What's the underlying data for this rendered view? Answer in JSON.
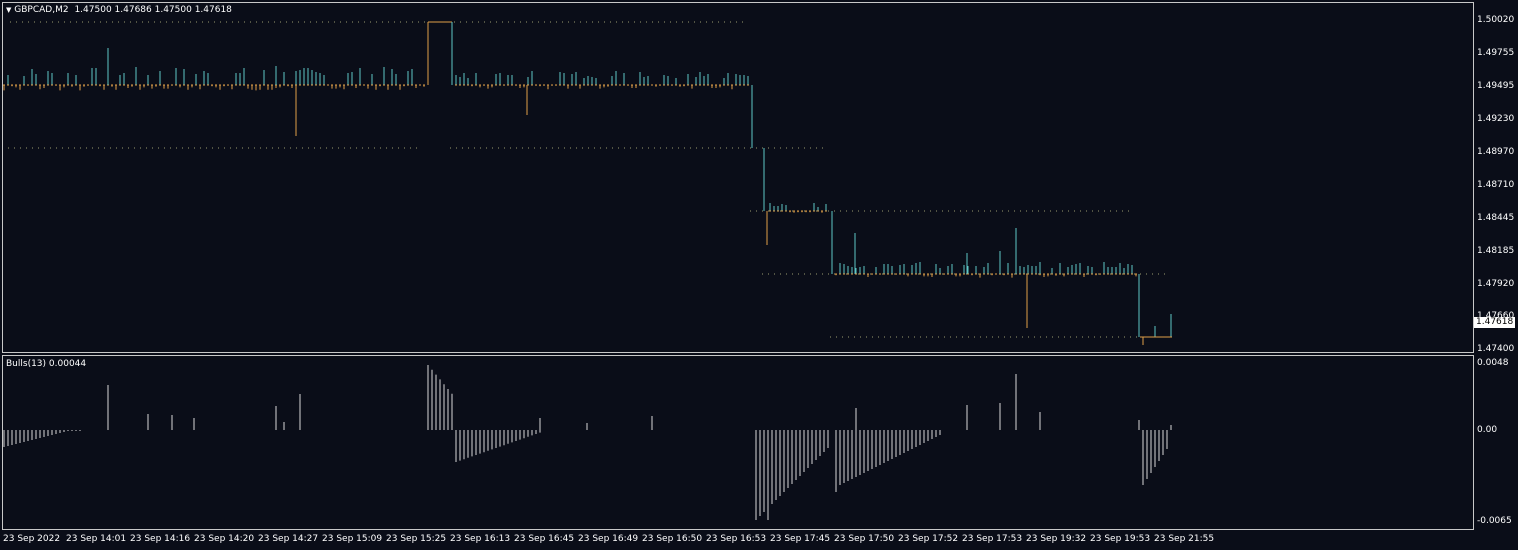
{
  "header": {
    "menu_triangle": "triangle-down-icon",
    "symbol": "GBPCAD,M2",
    "ohlc": "1.47500 1.47686 1.47500 1.47618"
  },
  "indicator_header": "Bulls(13) 0.00044",
  "current_price": "1.47618",
  "price_axis": [
    "1.50020",
    "1.49755",
    "1.49495",
    "1.49230",
    "1.48970",
    "1.48710",
    "1.48445",
    "1.48185",
    "1.47920",
    "1.47660",
    "1.47400"
  ],
  "indicator_axis": [
    "0.0048",
    "0.00",
    "-0.0065"
  ],
  "time_axis": [
    "23 Sep 2022",
    "23 Sep 14:01",
    "23 Sep 14:16",
    "23 Sep 14:20",
    "23 Sep 14:27",
    "23 Sep 15:09",
    "23 Sep 15:25",
    "23 Sep 16:13",
    "23 Sep 16:45",
    "23 Sep 16:49",
    "23 Sep 16:50",
    "23 Sep 16:53",
    "23 Sep 17:45",
    "23 Sep 17:50",
    "23 Sep 17:52",
    "23 Sep 17:53",
    "23 Sep 19:32",
    "23 Sep 19:53",
    "23 Sep 21:55"
  ],
  "colors": {
    "background": "#0a0d18",
    "bull": "#5fc6c6",
    "bear": "#e0a048",
    "grid_dots": "#9a9a70",
    "indicator": "#d8d8d8",
    "border": "#c8c8c8"
  }
}
